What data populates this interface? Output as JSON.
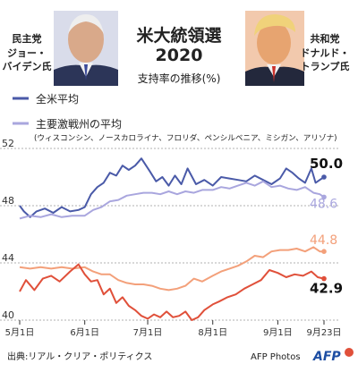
{
  "header": {
    "title": "米大統領選",
    "year": "2020",
    "subtitle": "支持率の推移(%)"
  },
  "candidates": {
    "left": {
      "party": "民主党",
      "name_line1": "ジョー・",
      "name_line2": "バイデン氏"
    },
    "right": {
      "party": "共和党",
      "name_line1": "ドナルド・",
      "name_line2": "トランプ氏"
    }
  },
  "legend": {
    "national": "全米平均",
    "battleground": "主要激戦州の平均",
    "battleground_states": "(ウィスコンシン、ノースカロライナ、フロリダ、ペンシルベニア、ミシガン、アリゾナ)"
  },
  "footer": {
    "source": "出典:リアル・クリア・ポリティクス",
    "credit": "AFP Photos",
    "logo": "AFP"
  },
  "colors": {
    "biden_national": "#4a5aa8",
    "biden_battleground": "#a9a6de",
    "trump_battleground": "#f3a07a",
    "trump_national": "#e0503a",
    "grid": "#999999",
    "logo_blue": "#1d4ea3"
  },
  "chart_data": {
    "type": "line",
    "x_ticks": [
      "5月1日",
      "6月1日",
      "7月1日",
      "8月1日",
      "9月1日",
      "9月23日"
    ],
    "x_range": [
      "2020-05-01",
      "2020-09-23"
    ],
    "y_ticks": [
      "40",
      "44",
      "48",
      "52"
    ],
    "ylim": [
      40,
      52
    ],
    "series": [
      {
        "name": "全米平均",
        "candidate": "バイデン氏",
        "end_label": "50.0",
        "color_key": "biden_national",
        "points": [
          [
            "2020-05-01",
            48.0
          ],
          [
            "2020-05-03",
            47.6
          ],
          [
            "2020-05-06",
            47.2
          ],
          [
            "2020-05-09",
            47.6
          ],
          [
            "2020-05-13",
            47.8
          ],
          [
            "2020-05-17",
            47.5
          ],
          [
            "2020-05-21",
            47.9
          ],
          [
            "2020-05-25",
            47.6
          ],
          [
            "2020-05-29",
            47.7
          ],
          [
            "2020-06-01",
            47.9
          ],
          [
            "2020-06-04",
            48.8
          ],
          [
            "2020-06-07",
            49.3
          ],
          [
            "2020-06-10",
            49.6
          ],
          [
            "2020-06-13",
            50.3
          ],
          [
            "2020-06-16",
            50.1
          ],
          [
            "2020-06-19",
            50.8
          ],
          [
            "2020-06-22",
            50.5
          ],
          [
            "2020-06-25",
            50.8
          ],
          [
            "2020-06-28",
            51.3
          ],
          [
            "2020-07-02",
            50.4
          ],
          [
            "2020-07-05",
            49.7
          ],
          [
            "2020-07-08",
            50.0
          ],
          [
            "2020-07-11",
            49.4
          ],
          [
            "2020-07-14",
            50.1
          ],
          [
            "2020-07-17",
            49.5
          ],
          [
            "2020-07-20",
            50.6
          ],
          [
            "2020-07-24",
            49.5
          ],
          [
            "2020-07-28",
            49.8
          ],
          [
            "2020-08-01",
            49.4
          ],
          [
            "2020-08-05",
            50.0
          ],
          [
            "2020-08-09",
            49.9
          ],
          [
            "2020-08-13",
            49.8
          ],
          [
            "2020-08-17",
            49.7
          ],
          [
            "2020-08-21",
            50.1
          ],
          [
            "2020-08-25",
            49.8
          ],
          [
            "2020-08-29",
            49.5
          ],
          [
            "2020-09-02",
            49.9
          ],
          [
            "2020-09-05",
            50.6
          ],
          [
            "2020-09-08",
            50.3
          ],
          [
            "2020-09-11",
            49.9
          ],
          [
            "2020-09-14",
            49.6
          ],
          [
            "2020-09-17",
            50.6
          ],
          [
            "2020-09-19",
            49.6
          ],
          [
            "2020-09-21",
            49.8
          ],
          [
            "2020-09-23",
            50.0
          ]
        ]
      },
      {
        "name": "主要激戦州の平均",
        "candidate": "バイデン氏",
        "end_label": "48.6",
        "color_key": "biden_battleground",
        "points": [
          [
            "2020-05-01",
            47.1
          ],
          [
            "2020-05-06",
            47.3
          ],
          [
            "2020-05-11",
            47.2
          ],
          [
            "2020-05-16",
            47.4
          ],
          [
            "2020-05-21",
            47.2
          ],
          [
            "2020-05-26",
            47.3
          ],
          [
            "2020-06-01",
            47.3
          ],
          [
            "2020-06-05",
            47.7
          ],
          [
            "2020-06-09",
            47.9
          ],
          [
            "2020-06-13",
            48.3
          ],
          [
            "2020-06-17",
            48.4
          ],
          [
            "2020-06-21",
            48.7
          ],
          [
            "2020-06-25",
            48.8
          ],
          [
            "2020-06-29",
            48.9
          ],
          [
            "2020-07-03",
            48.9
          ],
          [
            "2020-07-07",
            48.8
          ],
          [
            "2020-07-11",
            49.0
          ],
          [
            "2020-07-15",
            48.8
          ],
          [
            "2020-07-19",
            49.0
          ],
          [
            "2020-07-23",
            48.9
          ],
          [
            "2020-07-27",
            49.1
          ],
          [
            "2020-08-01",
            49.1
          ],
          [
            "2020-08-05",
            49.3
          ],
          [
            "2020-08-09",
            49.2
          ],
          [
            "2020-08-13",
            49.4
          ],
          [
            "2020-08-17",
            49.6
          ],
          [
            "2020-08-21",
            49.4
          ],
          [
            "2020-08-25",
            49.7
          ],
          [
            "2020-08-29",
            49.3
          ],
          [
            "2020-09-02",
            49.4
          ],
          [
            "2020-09-06",
            49.2
          ],
          [
            "2020-09-10",
            49.1
          ],
          [
            "2020-09-14",
            49.3
          ],
          [
            "2020-09-18",
            48.9
          ],
          [
            "2020-09-21",
            48.8
          ],
          [
            "2020-09-23",
            48.6
          ]
        ]
      },
      {
        "name": "主要激戦州の平均",
        "candidate": "トランプ氏",
        "end_label": "44.8",
        "color_key": "trump_battleground",
        "points": [
          [
            "2020-05-01",
            43.7
          ],
          [
            "2020-05-06",
            43.6
          ],
          [
            "2020-05-11",
            43.7
          ],
          [
            "2020-05-16",
            43.6
          ],
          [
            "2020-05-21",
            43.7
          ],
          [
            "2020-05-26",
            43.6
          ],
          [
            "2020-06-01",
            43.7
          ],
          [
            "2020-06-05",
            43.4
          ],
          [
            "2020-06-09",
            43.2
          ],
          [
            "2020-06-13",
            43.2
          ],
          [
            "2020-06-17",
            42.8
          ],
          [
            "2020-06-21",
            42.6
          ],
          [
            "2020-06-25",
            42.5
          ],
          [
            "2020-06-29",
            42.5
          ],
          [
            "2020-07-03",
            42.4
          ],
          [
            "2020-07-07",
            42.2
          ],
          [
            "2020-07-11",
            42.1
          ],
          [
            "2020-07-15",
            42.2
          ],
          [
            "2020-07-19",
            42.4
          ],
          [
            "2020-07-23",
            42.9
          ],
          [
            "2020-07-27",
            42.7
          ],
          [
            "2020-08-01",
            43.1
          ],
          [
            "2020-08-05",
            43.4
          ],
          [
            "2020-08-09",
            43.6
          ],
          [
            "2020-08-13",
            43.8
          ],
          [
            "2020-08-17",
            44.1
          ],
          [
            "2020-08-21",
            44.5
          ],
          [
            "2020-08-25",
            44.4
          ],
          [
            "2020-08-29",
            44.8
          ],
          [
            "2020-09-02",
            44.9
          ],
          [
            "2020-09-06",
            44.9
          ],
          [
            "2020-09-10",
            45.0
          ],
          [
            "2020-09-14",
            44.8
          ],
          [
            "2020-09-18",
            45.1
          ],
          [
            "2020-09-21",
            44.8
          ],
          [
            "2020-09-23",
            44.8
          ]
        ]
      },
      {
        "name": "全米平均",
        "candidate": "トランプ氏",
        "end_label": "42.9",
        "color_key": "trump_national",
        "points": [
          [
            "2020-05-01",
            42.0
          ],
          [
            "2020-05-04",
            42.8
          ],
          [
            "2020-05-08",
            42.1
          ],
          [
            "2020-05-12",
            42.9
          ],
          [
            "2020-05-16",
            43.1
          ],
          [
            "2020-05-20",
            42.7
          ],
          [
            "2020-05-25",
            43.4
          ],
          [
            "2020-05-29",
            43.9
          ],
          [
            "2020-06-01",
            43.2
          ],
          [
            "2020-06-04",
            42.7
          ],
          [
            "2020-06-07",
            42.8
          ],
          [
            "2020-06-10",
            41.8
          ],
          [
            "2020-06-13",
            42.2
          ],
          [
            "2020-06-16",
            41.2
          ],
          [
            "2020-06-19",
            41.6
          ],
          [
            "2020-06-22",
            41.0
          ],
          [
            "2020-06-25",
            40.7
          ],
          [
            "2020-06-28",
            40.3
          ],
          [
            "2020-07-01",
            40.1
          ],
          [
            "2020-07-04",
            40.4
          ],
          [
            "2020-07-07",
            40.2
          ],
          [
            "2020-07-10",
            40.6
          ],
          [
            "2020-07-13",
            40.2
          ],
          [
            "2020-07-16",
            40.3
          ],
          [
            "2020-07-19",
            40.6
          ],
          [
            "2020-07-22",
            40.0
          ],
          [
            "2020-07-25",
            40.2
          ],
          [
            "2020-07-28",
            40.7
          ],
          [
            "2020-08-01",
            41.1
          ],
          [
            "2020-08-04",
            41.3
          ],
          [
            "2020-08-08",
            41.6
          ],
          [
            "2020-08-12",
            41.8
          ],
          [
            "2020-08-16",
            42.2
          ],
          [
            "2020-08-20",
            42.5
          ],
          [
            "2020-08-24",
            42.8
          ],
          [
            "2020-08-28",
            43.5
          ],
          [
            "2020-09-01",
            43.3
          ],
          [
            "2020-09-05",
            43.0
          ],
          [
            "2020-09-09",
            43.2
          ],
          [
            "2020-09-13",
            43.1
          ],
          [
            "2020-09-17",
            43.4
          ],
          [
            "2020-09-20",
            43.0
          ],
          [
            "2020-09-23",
            42.9
          ]
        ]
      }
    ]
  }
}
